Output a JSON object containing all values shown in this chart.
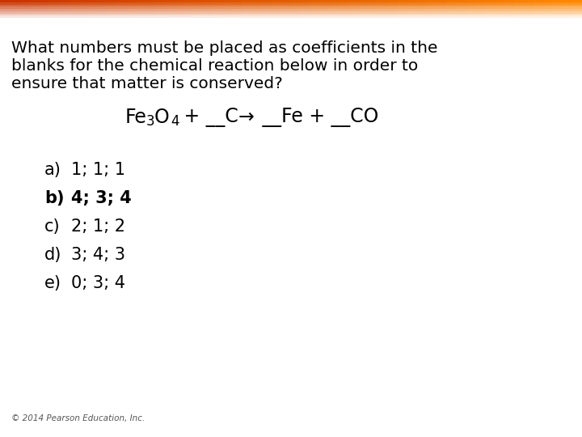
{
  "title_line1": "What numbers must be placed as coefficients in the",
  "title_line2": "blanks for the chemical reaction below in order to",
  "title_line3": "ensure that matter is conserved?",
  "options": [
    {
      "label": "a)",
      "text": "1; 1; 1",
      "bold": false
    },
    {
      "label": "b)",
      "text": "4; 3; 4",
      "bold": true
    },
    {
      "label": "c)",
      "text": "2; 1; 2",
      "bold": false
    },
    {
      "label": "d)",
      "text": "3; 4; 3",
      "bold": false
    },
    {
      "label": "e)",
      "text": "0; 3; 4",
      "bold": false
    }
  ],
  "footer": "© 2014 Pearson Education, Inc.",
  "bg_color": "#ffffff",
  "text_color": "#000000",
  "title_fontsize": 14.5,
  "option_fontsize": 15.0,
  "equation_fontsize": 17,
  "footer_fontsize": 7.5
}
